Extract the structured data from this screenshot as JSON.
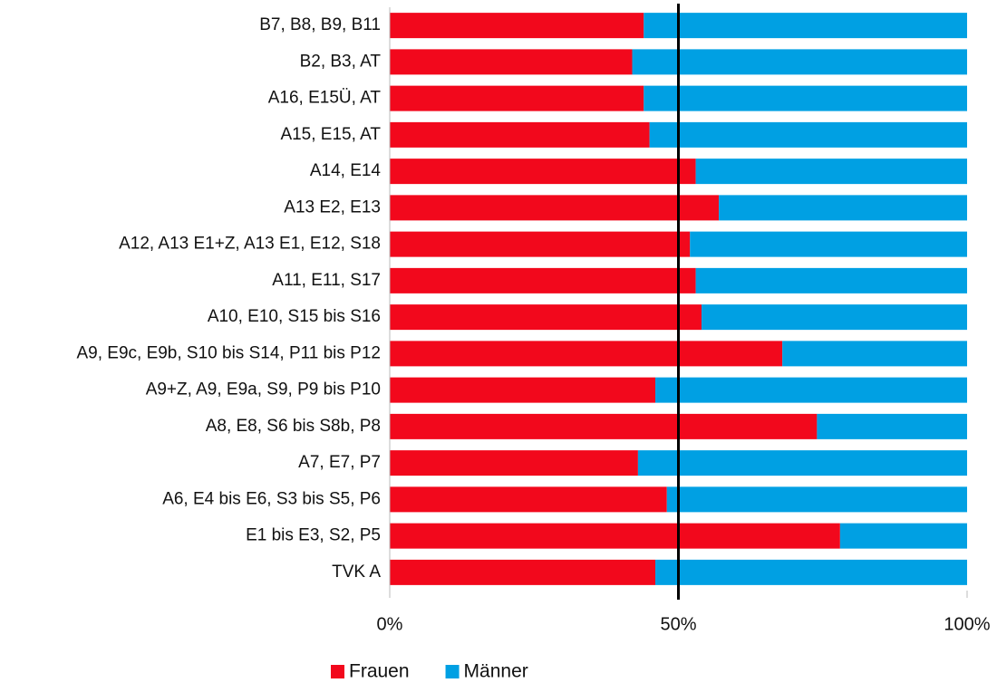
{
  "chart_data": {
    "type": "stacked_barh",
    "categories": [
      "B7, B8, B9, B11",
      "B2, B3, AT",
      "A16, E15Ü, AT",
      "A15, E15, AT",
      "A14, E14",
      "A13 E2, E13",
      "A12, A13 E1+Z, A13 E1, E12, S18",
      "A11, E11, S17",
      "A10, E10, S15 bis S16",
      "A9, E9c, E9b, S10 bis S14, P11 bis P12",
      "A9+Z, A9, E9a, S9, P9 bis P10",
      "A8, E8, S6 bis S8b, P8",
      "A7, E7, P7",
      "A6, E4 bis E6, S3 bis S5, P6",
      "E1 bis E3, S2, P5",
      "TVK A"
    ],
    "series": [
      {
        "name": "Frauen",
        "color": "#f2081c",
        "values": [
          44,
          42,
          44,
          45,
          53,
          57,
          52,
          53,
          54,
          68,
          46,
          74,
          43,
          48,
          78,
          46
        ]
      },
      {
        "name": "Männer",
        "color": "#00a0e3",
        "values": [
          56,
          58,
          56,
          55,
          47,
          43,
          48,
          47,
          46,
          32,
          54,
          26,
          57,
          52,
          22,
          54
        ]
      }
    ],
    "xlim": [
      0,
      100
    ],
    "xticks": [
      {
        "value": 0,
        "label": "0%"
      },
      {
        "value": 50,
        "label": "50%"
      },
      {
        "value": 100,
        "label": "100%"
      }
    ],
    "reference_line": 50,
    "legend": "bottom"
  }
}
